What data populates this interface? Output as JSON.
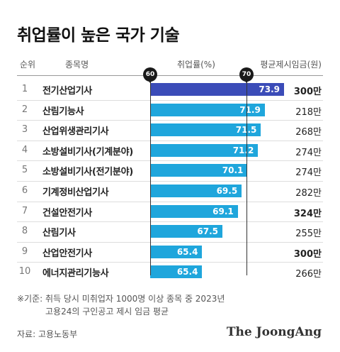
{
  "title": "취업률이 높은 국가 기술",
  "headers": {
    "rank": "순위",
    "name": "종목명",
    "rate": "취업률(%)",
    "wage": "평균제시임금(원)"
  },
  "markers": [
    "60",
    "70"
  ],
  "chart_data": {
    "type": "bar",
    "title": "취업률이 높은 국가 기술",
    "orientation": "horizontal",
    "xlim": [
      60,
      75
    ],
    "reference_lines": [
      60,
      70
    ],
    "categories": [
      "전기산업기사",
      "산림기능사",
      "산업위생관리기사",
      "소방설비기사(기계분야)",
      "소방설비기사(전기분야)",
      "기계정비산업기사",
      "건설안전기사",
      "산림기사",
      "산업안전기사",
      "에너지관리기능사"
    ],
    "ranks": [
      "1",
      "2",
      "3",
      "4",
      "5",
      "6",
      "7",
      "8",
      "9",
      "10"
    ],
    "values": [
      73.9,
      71.9,
      71.5,
      71.2,
      70.1,
      69.5,
      69.1,
      67.5,
      65.4,
      65.4
    ],
    "value_labels": [
      "73.9",
      "71.9",
      "71.5",
      "71.2",
      "70.1",
      "69.5",
      "69.1",
      "67.5",
      "65.4",
      "65.4"
    ],
    "wages": [
      "300만",
      "218만",
      "268만",
      "274만",
      "274만",
      "282만",
      "324만",
      "255만",
      "300만",
      "266만"
    ],
    "wage_bold": [
      true,
      false,
      false,
      false,
      false,
      false,
      true,
      false,
      true,
      false
    ],
    "colors": {
      "top": "#3b4cb8",
      "default": "#1fa6dc"
    }
  },
  "notes": [
    "※기준: 취득 당시 미취업자 1000명 이상 종목 중 2023년",
    "고용24의 구인공고 제시 임금 평균"
  ],
  "source": "자료: 고용노동부",
  "brand": "The JoongAng"
}
